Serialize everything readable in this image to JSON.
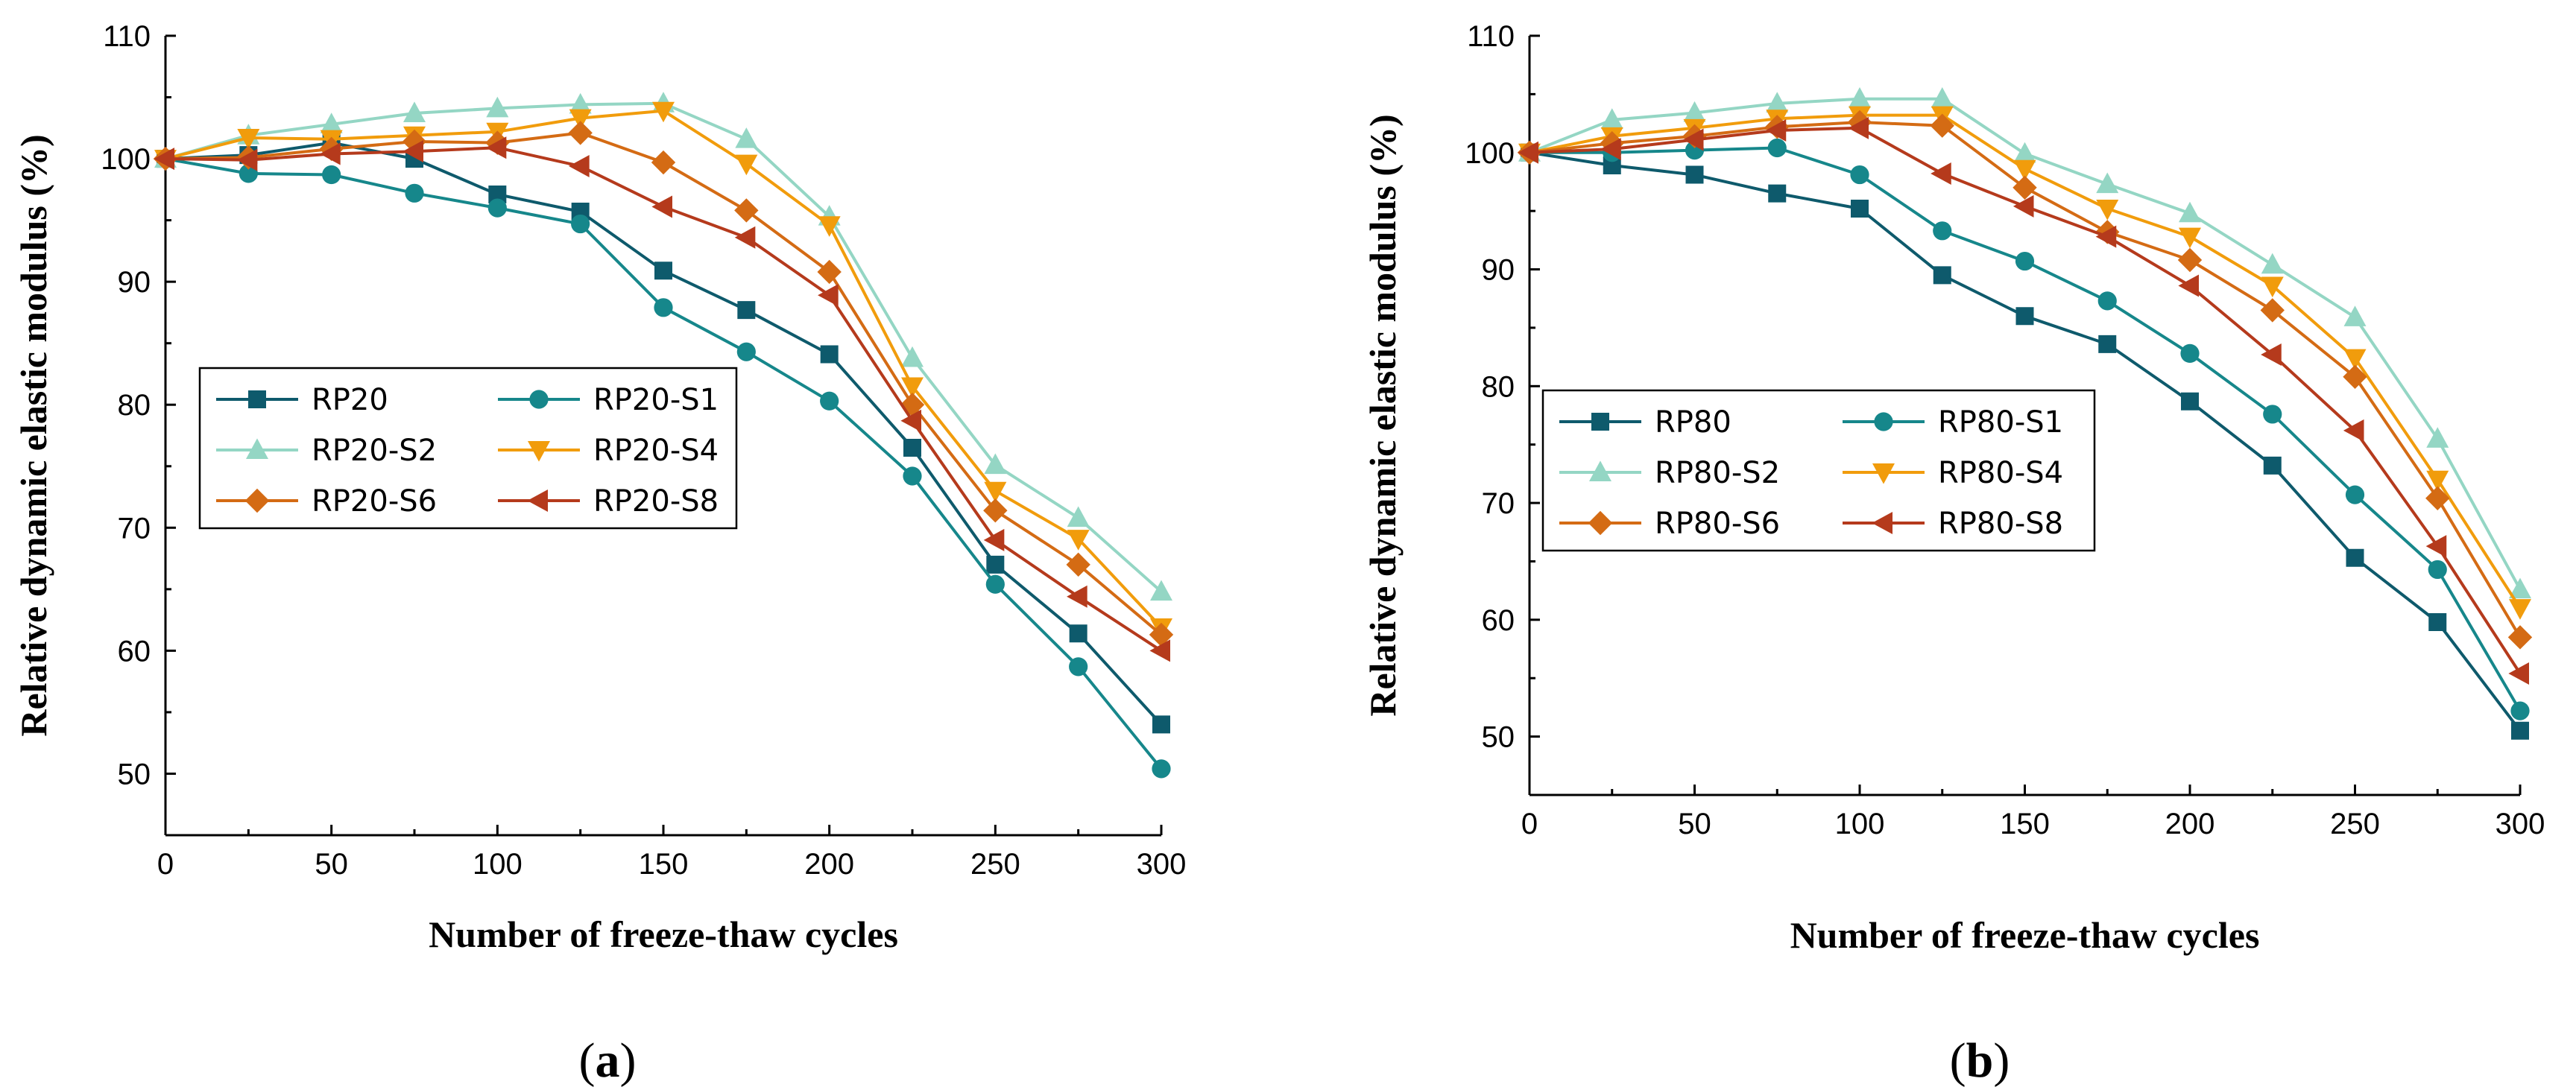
{
  "chart_data": [
    {
      "type": "line",
      "panel": "a",
      "panel_label": {
        "open": "(",
        "letter": "a",
        "close": ")"
      },
      "xlabel": "Number of freeze-thaw cycles",
      "ylabel": "Relative dynamic elastic modulus (%)",
      "xlim": [
        0,
        300
      ],
      "ylim": [
        45,
        110
      ],
      "xticks": [
        0,
        50,
        100,
        150,
        200,
        250,
        300
      ],
      "yticks": [
        50,
        60,
        70,
        80,
        90,
        100,
        110
      ],
      "x": [
        0,
        25,
        50,
        75,
        100,
        125,
        150,
        175,
        200,
        225,
        250,
        275,
        300
      ],
      "legend_position": "center-left",
      "series": [
        {
          "name": "RP20",
          "marker": "square",
          "color": "#0e5a6c",
          "values": [
            100,
            100.3,
            101.3,
            100.0,
            97.1,
            95.7,
            90.9,
            87.7,
            84.1,
            76.5,
            67.0,
            61.4,
            54.0
          ]
        },
        {
          "name": "RP20-S1",
          "marker": "circle",
          "color": "#16878b",
          "values": [
            100,
            98.8,
            98.7,
            97.2,
            96.0,
            94.7,
            87.9,
            84.3,
            80.3,
            74.2,
            65.4,
            58.7,
            50.4
          ]
        },
        {
          "name": "RP20-S2",
          "marker": "triangle-up",
          "color": "#94d6c4",
          "values": [
            100,
            101.9,
            102.8,
            103.7,
            104.1,
            104.4,
            104.5,
            101.6,
            95.3,
            83.8,
            75.1,
            70.8,
            64.8
          ]
        },
        {
          "name": "RP20-S4",
          "marker": "triangle-down",
          "color": "#f19c0c",
          "values": [
            100,
            101.7,
            101.6,
            101.9,
            102.2,
            103.3,
            103.9,
            99.6,
            94.6,
            81.5,
            73.0,
            69.1,
            61.9
          ]
        },
        {
          "name": "RP20-S6",
          "marker": "diamond",
          "color": "#d46b14",
          "values": [
            100,
            100.1,
            100.8,
            101.4,
            101.3,
            102.1,
            99.7,
            95.8,
            90.8,
            80.0,
            71.4,
            67.0,
            61.3
          ]
        },
        {
          "name": "RP20-S8",
          "marker": "triangle-left",
          "color": "#b53a1c",
          "values": [
            100,
            99.9,
            100.4,
            100.6,
            100.9,
            99.4,
            96.1,
            93.6,
            88.9,
            78.7,
            69.0,
            64.4,
            60.0
          ]
        }
      ]
    },
    {
      "type": "line",
      "panel": "b",
      "panel_label": {
        "open": "(",
        "letter": "b",
        "close": ")"
      },
      "xlabel": "Number of freeze-thaw cycles",
      "ylabel": "Relative dynamic elastic modulus (%)",
      "xlim": [
        0,
        300
      ],
      "ylim": [
        45,
        110
      ],
      "xticks": [
        0,
        50,
        100,
        150,
        200,
        250,
        300
      ],
      "yticks": [
        50,
        60,
        70,
        80,
        90,
        100,
        110
      ],
      "x": [
        0,
        25,
        50,
        75,
        100,
        125,
        150,
        175,
        200,
        225,
        250,
        275,
        300
      ],
      "legend_position": "center-left",
      "series": [
        {
          "name": "RP80",
          "marker": "square",
          "color": "#0e5a6c",
          "values": [
            100,
            98.9,
            98.1,
            96.5,
            95.2,
            89.5,
            86.0,
            83.6,
            78.7,
            73.2,
            65.3,
            59.8,
            50.5
          ]
        },
        {
          "name": "RP80-S1",
          "marker": "circle",
          "color": "#16878b",
          "values": [
            100,
            100.0,
            100.2,
            100.4,
            98.1,
            93.3,
            90.7,
            87.3,
            82.8,
            77.6,
            70.7,
            64.3,
            52.2
          ]
        },
        {
          "name": "RP80-S2",
          "marker": "triangle-up",
          "color": "#94d6c4",
          "values": [
            100,
            102.8,
            103.4,
            104.2,
            104.6,
            104.6,
            99.9,
            97.3,
            94.8,
            90.4,
            85.9,
            75.5,
            62.6
          ]
        },
        {
          "name": "RP80-S4",
          "marker": "triangle-down",
          "color": "#f19c0c",
          "values": [
            100,
            101.4,
            102.1,
            102.9,
            103.2,
            103.2,
            98.6,
            95.2,
            92.8,
            88.6,
            82.4,
            72.0,
            61.0
          ]
        },
        {
          "name": "RP80-S6",
          "marker": "diamond",
          "color": "#d46b14",
          "values": [
            100,
            100.8,
            101.4,
            102.2,
            102.6,
            102.3,
            97.0,
            93.2,
            90.8,
            86.5,
            80.8,
            70.4,
            58.5
          ]
        },
        {
          "name": "RP80-S8",
          "marker": "triangle-left",
          "color": "#b53a1c",
          "values": [
            100,
            100.3,
            101.1,
            101.9,
            102.1,
            98.2,
            95.4,
            92.8,
            88.6,
            82.7,
            76.2,
            66.3,
            55.4
          ]
        }
      ]
    }
  ]
}
